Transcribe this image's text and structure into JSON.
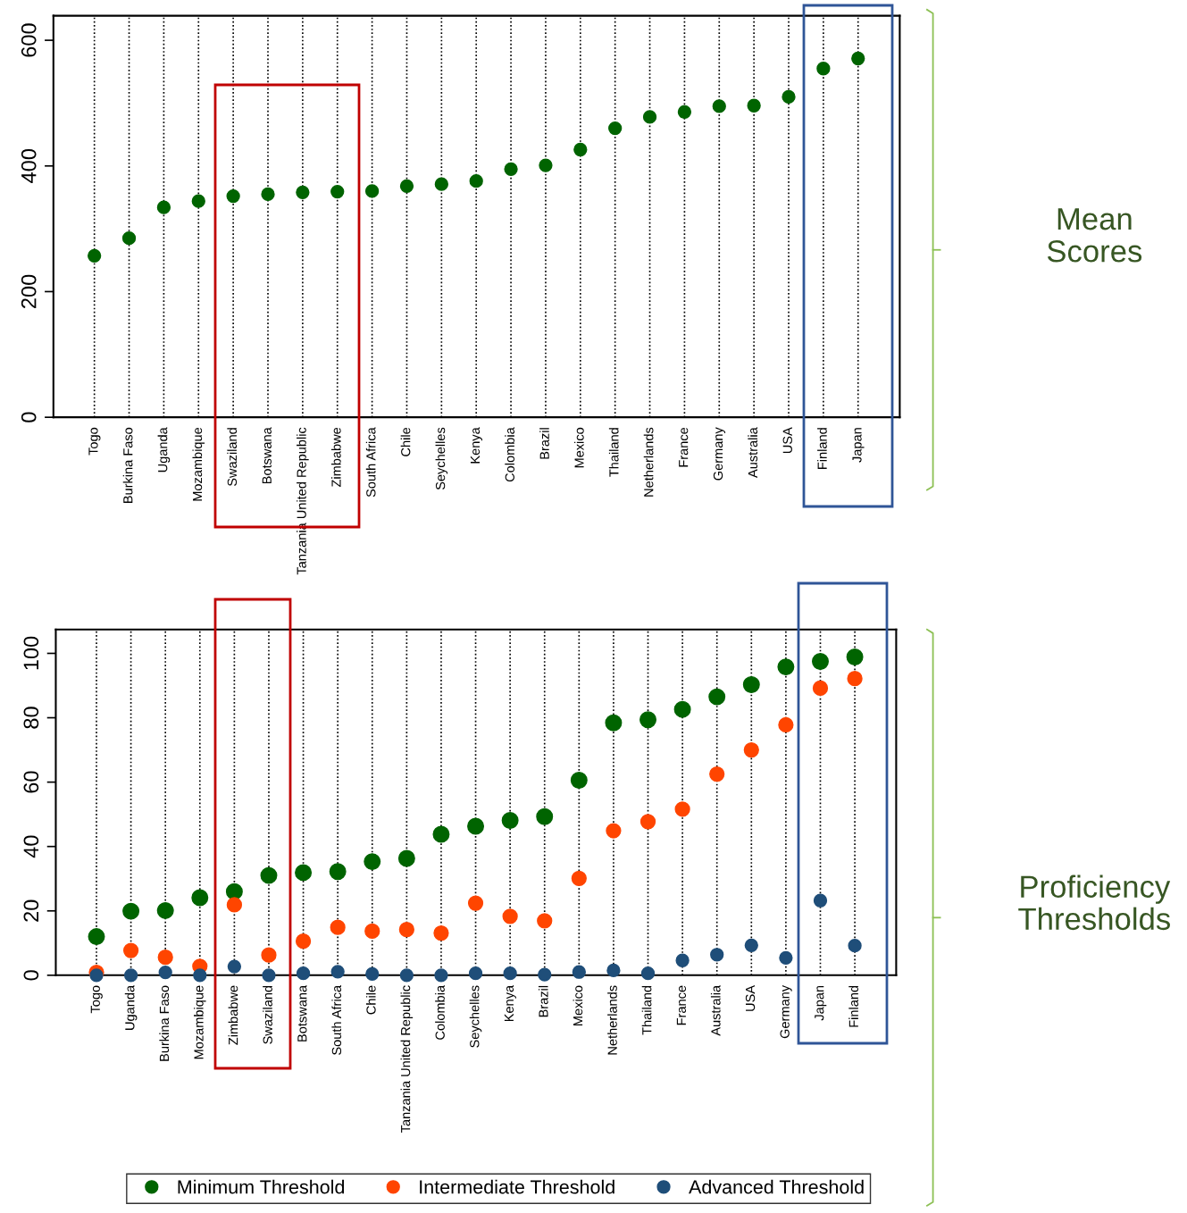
{
  "chart_data": [
    {
      "type": "scatter",
      "categories": [
        "Togo",
        "Burkina Faso",
        "Uganda",
        "Mozambique",
        "Swaziland",
        "Botswana",
        "Tanzania United Republic",
        "Zimbabwe",
        "South Africa",
        "Chile",
        "Seychelles",
        "Kenya",
        "Colombia",
        "Brazil",
        "Mexico",
        "Thailand",
        "Netherlands",
        "France",
        "Germany",
        "Australia",
        "USA",
        "Finland",
        "Japan"
      ],
      "series": [
        {
          "color": "#006400",
          "values": [
            257,
            285,
            334,
            344,
            352,
            355,
            358,
            359,
            360,
            368,
            371,
            376,
            395,
            401,
            426,
            460,
            478,
            486,
            495,
            496,
            510,
            555,
            571
          ]
        }
      ],
      "ylim": [
        0,
        639
      ],
      "yticks": [
        0,
        200,
        400,
        600
      ],
      "grid": "x",
      "marker": "circle",
      "legend": false,
      "annotations": [
        "Mean\nScores"
      ]
    },
    {
      "type": "scatter",
      "categories": [
        "Togo",
        "Uganda",
        "Burkina Faso",
        "Mozambique",
        "Zimbabwe",
        "Swaziland",
        "Botswana",
        "South Africa",
        "Chile",
        "Tanzania United Republic",
        "Colombia",
        "Seychelles",
        "Kenya",
        "Brazil",
        "Mexico",
        "Netherlands",
        "Thailand",
        "France",
        "Australia",
        "USA",
        "Germany",
        "Japan",
        "Finland"
      ],
      "series": [
        {
          "name": "Minimum Threshold",
          "color": "#006400",
          "values": [
            12,
            19.9,
            20.1,
            24.1,
            26,
            31,
            31.9,
            32.2,
            35.3,
            36.3,
            43.8,
            46.3,
            48.1,
            49.3,
            60.6,
            78.4,
            79.4,
            82.6,
            86.5,
            90.3,
            95.8,
            97.5,
            98.9
          ]
        },
        {
          "name": "Intermediate Threshold",
          "color": "#ff4500",
          "values": [
            0.9,
            7.7,
            5.6,
            2.8,
            21.9,
            6.3,
            10.6,
            14.9,
            13.7,
            14.2,
            13.1,
            22.4,
            18.3,
            16.9,
            30.1,
            44.9,
            47.7,
            51.6,
            62.5,
            70,
            77.8,
            89.2,
            92.2
          ]
        },
        {
          "name": "Advanced Threshold",
          "color": "#1f4e79",
          "values": [
            0,
            0,
            0.9,
            0,
            2.7,
            0,
            0.6,
            1.1,
            0.4,
            0,
            0,
            0.6,
            0.6,
            0.2,
            1,
            1.5,
            0.6,
            4.6,
            6.4,
            9.3,
            5.4,
            23.2,
            9.2
          ]
        }
      ],
      "ylim": [
        0,
        107.4
      ],
      "yticks": [
        0,
        20,
        40,
        60,
        80,
        100
      ],
      "grid": "x",
      "marker": "circle",
      "legend": "bottom",
      "annotations": [
        "Proficiency\nThresholds"
      ]
    }
  ]
}
